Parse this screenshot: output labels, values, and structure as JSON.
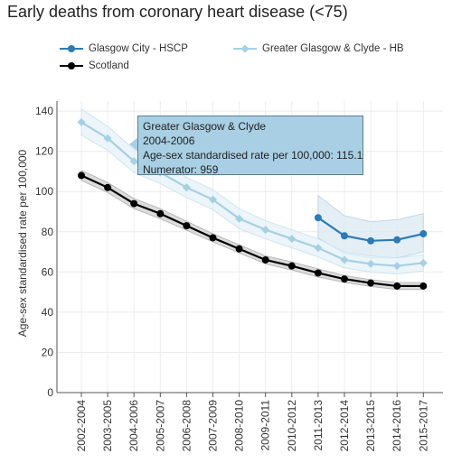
{
  "title": "Early deaths from coronary heart disease (<75)",
  "legend": {
    "items": [
      {
        "label": "Glasgow City - HSCP",
        "color": "#2b7bba",
        "marker": "circle"
      },
      {
        "label": "Greater Glasgow & Clyde - HB",
        "color": "#a6d0e4",
        "marker": "diamond"
      },
      {
        "label": "Scotland",
        "color": "#000000",
        "marker": "circle"
      }
    ]
  },
  "tooltip": {
    "line1": "Greater Glasgow & Clyde",
    "line2": "2004-2006",
    "line3": "Age-sex standardised rate per 100,000: 115.1",
    "line4": "Numerator: 959"
  },
  "chart_data": {
    "type": "line",
    "title": "Early deaths from coronary heart disease (<75)",
    "xlabel": "",
    "ylabel": "Age-sex standardised rate per 100,000",
    "ylim": [
      0,
      145
    ],
    "yticks": [
      0,
      20,
      40,
      60,
      80,
      100,
      120,
      140
    ],
    "grid": true,
    "legend_position": "top-left",
    "categories": [
      "2002-2004",
      "2003-2005",
      "2004-2006",
      "2005-2007",
      "2006-2008",
      "2007-2009",
      "2008-2010",
      "2009-2011",
      "2010-2012",
      "2011-2013",
      "2012-2014",
      "2013-2015",
      "2014-2016",
      "2015-2017"
    ],
    "series": [
      {
        "name": "Glasgow City - HSCP",
        "color": "#2b7bba",
        "marker": "circle",
        "values": [
          null,
          null,
          null,
          null,
          null,
          null,
          null,
          null,
          null,
          87,
          78,
          75.5,
          76,
          79
        ],
        "ci_low": [
          null,
          null,
          null,
          null,
          null,
          null,
          null,
          null,
          null,
          77,
          69,
          67,
          67,
          70
        ],
        "ci_high": [
          null,
          null,
          null,
          null,
          null,
          null,
          null,
          null,
          null,
          98,
          88,
          85,
          86,
          89
        ]
      },
      {
        "name": "Greater Glasgow & Clyde - HB",
        "color": "#a6d0e4",
        "marker": "diamond",
        "values": [
          134.5,
          126.5,
          115.1,
          109.5,
          102,
          96,
          86.5,
          81,
          76.5,
          72,
          66,
          64,
          63,
          64.5
        ],
        "ci_low": [
          128,
          120.5,
          109.5,
          104,
          97,
          91,
          81.5,
          76.5,
          72,
          67.5,
          62,
          60,
          59,
          60.5
        ],
        "ci_high": [
          141,
          132.5,
          121,
          115,
          107,
          101,
          91.5,
          85.5,
          81,
          76.5,
          70,
          68,
          67,
          68.5
        ]
      },
      {
        "name": "Scotland",
        "color": "#000000",
        "marker": "circle",
        "values": [
          108,
          102,
          94,
          89,
          83,
          77,
          71.5,
          66,
          63,
          59.5,
          56.5,
          54.5,
          53,
          53
        ],
        "ci_low": [
          105.5,
          99.5,
          91.5,
          86.5,
          80.8,
          75,
          69.5,
          64,
          61,
          57.5,
          54.8,
          52.8,
          51.3,
          51.3
        ],
        "ci_high": [
          110.5,
          104.5,
          96.5,
          91.5,
          85.2,
          79,
          73.5,
          68,
          65,
          61.5,
          58.2,
          56.2,
          54.7,
          54.7
        ]
      }
    ]
  }
}
